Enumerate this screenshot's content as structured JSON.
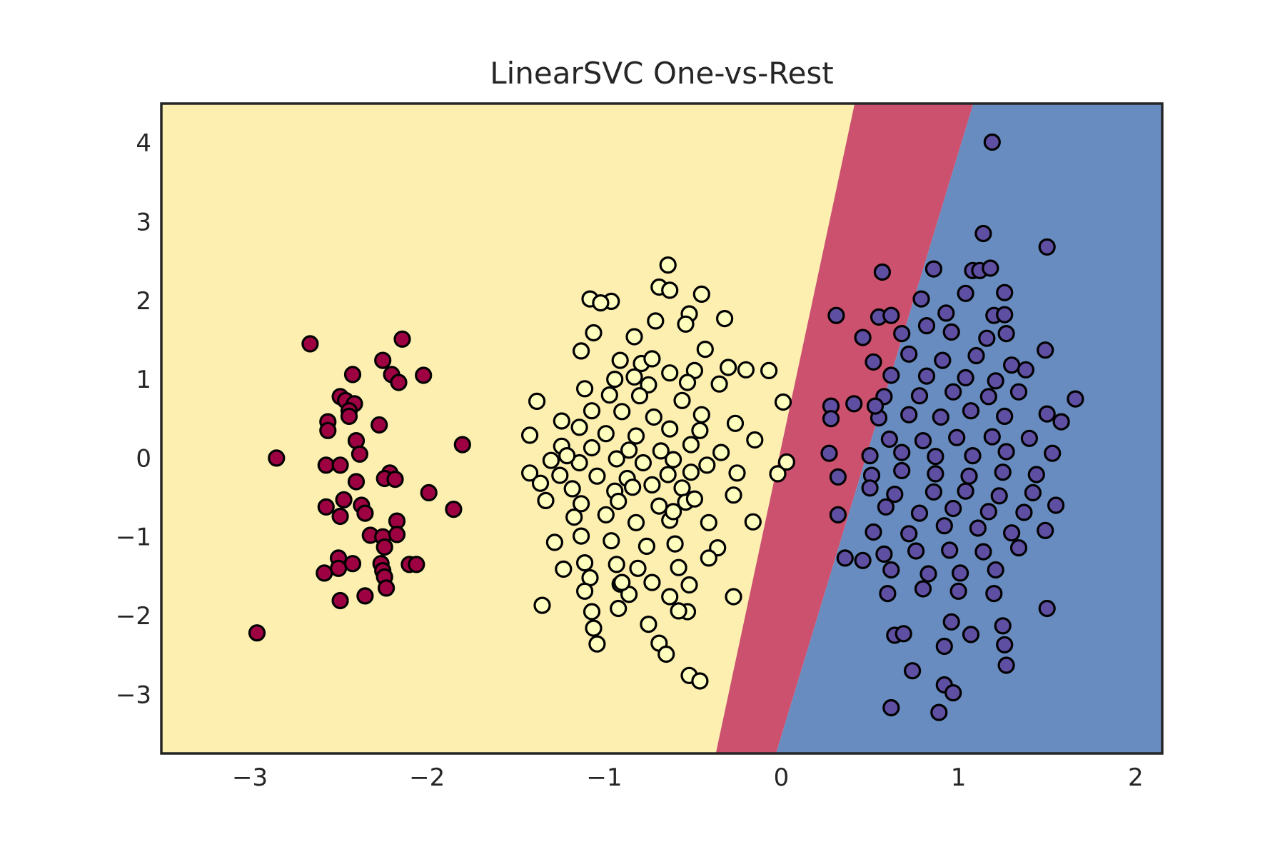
{
  "chart_data": {
    "type": "scatter",
    "title": "LinearSVC One-vs-Rest",
    "xlabel": "",
    "ylabel": "",
    "xlim": [
      -3.5,
      2.15
    ],
    "ylim": [
      -3.75,
      4.5
    ],
    "xticks": [
      -3,
      -2,
      -1,
      0,
      1,
      2
    ],
    "yticks": [
      -3,
      -2,
      -1,
      0,
      1,
      2,
      3,
      4
    ],
    "xtick_labels": [
      "−3",
      "−2",
      "−1",
      "0",
      "1",
      "2"
    ],
    "ytick_labels": [
      "−3",
      "−2",
      "−1",
      "0",
      "1",
      "2",
      "3",
      "4"
    ],
    "grid": false,
    "legend": "none",
    "decision_regions": [
      {
        "class": "left cluster",
        "color": "#fcefb0",
        "boundary": "x < -0.37 + 0.095*(y + 3.75)"
      },
      {
        "class": "narrow band",
        "color": "#cb516e",
        "boundary": "between left and right regions"
      },
      {
        "class": "right cluster",
        "color": "#688cc0",
        "boundary": "x > -0.03 + 0.135*(y + 3.75)"
      }
    ],
    "series": [
      {
        "color": "#9e0142",
        "points": [
          [
            -2.66,
            1.45
          ],
          [
            -2.14,
            1.51
          ],
          [
            -2.25,
            1.24
          ],
          [
            -2.2,
            1.06
          ],
          [
            -2.16,
            0.96
          ],
          [
            -2.02,
            1.05
          ],
          [
            -2.42,
            1.06
          ],
          [
            -2.49,
            0.78
          ],
          [
            -2.46,
            0.73
          ],
          [
            -2.41,
            0.69
          ],
          [
            -2.44,
            0.6
          ],
          [
            -2.56,
            0.46
          ],
          [
            -2.44,
            0.53
          ],
          [
            -2.56,
            0.35
          ],
          [
            -2.4,
            0.22
          ],
          [
            -2.27,
            0.42
          ],
          [
            -2.38,
            0.05
          ],
          [
            -2.85,
            0.0
          ],
          [
            -1.8,
            0.17
          ],
          [
            -2.57,
            -0.09
          ],
          [
            -2.49,
            -0.09
          ],
          [
            -2.4,
            -0.3
          ],
          [
            -2.21,
            -0.19
          ],
          [
            -2.24,
            -0.26
          ],
          [
            -2.18,
            -0.27
          ],
          [
            -1.99,
            -0.44
          ],
          [
            -2.47,
            -0.53
          ],
          [
            -2.57,
            -0.62
          ],
          [
            -2.37,
            -0.6
          ],
          [
            -2.35,
            -0.7
          ],
          [
            -2.49,
            -0.74
          ],
          [
            -1.85,
            -0.65
          ],
          [
            -2.17,
            -0.8
          ],
          [
            -2.32,
            -0.98
          ],
          [
            -2.25,
            -1.0
          ],
          [
            -2.17,
            -0.97
          ],
          [
            -2.24,
            -1.13
          ],
          [
            -2.5,
            -1.27
          ],
          [
            -2.42,
            -1.34
          ],
          [
            -2.5,
            -1.4
          ],
          [
            -2.26,
            -1.34
          ],
          [
            -2.25,
            -1.43
          ],
          [
            -2.24,
            -1.51
          ],
          [
            -2.1,
            -1.35
          ],
          [
            -2.06,
            -1.35
          ],
          [
            -2.58,
            -1.46
          ],
          [
            -2.23,
            -1.65
          ],
          [
            -2.35,
            -1.75
          ],
          [
            -2.49,
            -1.81
          ],
          [
            -2.96,
            -2.22
          ]
        ]
      },
      {
        "color": "#fefebe",
        "points": [
          [
            -0.64,
            2.45
          ],
          [
            -1.08,
            2.02
          ],
          [
            -0.69,
            2.17
          ],
          [
            -0.63,
            2.13
          ],
          [
            -0.45,
            2.08
          ],
          [
            -0.52,
            1.83
          ],
          [
            -0.32,
            1.77
          ],
          [
            -0.96,
            1.99
          ],
          [
            -1.02,
            1.97
          ],
          [
            -1.06,
            1.59
          ],
          [
            -0.71,
            1.74
          ],
          [
            -0.54,
            1.7
          ],
          [
            -0.83,
            1.54
          ],
          [
            -1.13,
            1.36
          ],
          [
            -0.91,
            1.24
          ],
          [
            -0.79,
            1.2
          ],
          [
            -0.73,
            1.26
          ],
          [
            -0.63,
            1.08
          ],
          [
            -0.49,
            1.11
          ],
          [
            -0.3,
            1.15
          ],
          [
            -0.2,
            1.12
          ],
          [
            -0.07,
            1.11
          ],
          [
            -0.94,
            1.0
          ],
          [
            -0.83,
            1.03
          ],
          [
            -0.75,
            0.93
          ],
          [
            -0.53,
            0.96
          ],
          [
            -0.35,
            0.94
          ],
          [
            -1.11,
            0.88
          ],
          [
            -0.97,
            0.8
          ],
          [
            -0.8,
            0.79
          ],
          [
            -0.56,
            0.73
          ],
          [
            -1.38,
            0.72
          ],
          [
            -1.07,
            0.6
          ],
          [
            -0.9,
            0.59
          ],
          [
            -0.72,
            0.52
          ],
          [
            -0.45,
            0.55
          ],
          [
            -1.24,
            0.47
          ],
          [
            -1.14,
            0.39
          ],
          [
            -0.99,
            0.31
          ],
          [
            -0.82,
            0.28
          ],
          [
            -0.63,
            0.37
          ],
          [
            -0.46,
            0.35
          ],
          [
            -0.26,
            0.44
          ],
          [
            -1.42,
            0.29
          ],
          [
            -1.24,
            0.15
          ],
          [
            -1.07,
            0.13
          ],
          [
            -0.86,
            0.1
          ],
          [
            -0.68,
            0.09
          ],
          [
            -0.51,
            0.17
          ],
          [
            -0.34,
            0.07
          ],
          [
            -1.3,
            -0.03
          ],
          [
            -1.14,
            -0.06
          ],
          [
            -0.93,
            -0.01
          ],
          [
            -0.78,
            -0.06
          ],
          [
            -0.61,
            -0.02
          ],
          [
            -0.42,
            -0.09
          ],
          [
            0.01,
            0.71
          ],
          [
            -0.15,
            0.23
          ],
          [
            -1.42,
            -0.19
          ],
          [
            -1.25,
            -0.22
          ],
          [
            -1.04,
            -0.23
          ],
          [
            -0.87,
            -0.26
          ],
          [
            -0.64,
            -0.21
          ],
          [
            -0.51,
            -0.18
          ],
          [
            -0.25,
            -0.19
          ],
          [
            -1.36,
            -0.32
          ],
          [
            -1.18,
            -0.39
          ],
          [
            -0.94,
            -0.42
          ],
          [
            -0.73,
            -0.34
          ],
          [
            -0.56,
            -0.38
          ],
          [
            -1.33,
            -0.54
          ],
          [
            -1.13,
            -0.58
          ],
          [
            -0.92,
            -0.55
          ],
          [
            -0.69,
            -0.61
          ],
          [
            -0.54,
            -0.56
          ],
          [
            -0.27,
            -0.47
          ],
          [
            -1.17,
            -0.75
          ],
          [
            -0.99,
            -0.72
          ],
          [
            -0.82,
            -0.82
          ],
          [
            -0.63,
            -0.79
          ],
          [
            -0.41,
            -0.82
          ],
          [
            -0.16,
            -0.81
          ],
          [
            -1.28,
            -1.07
          ],
          [
            -1.13,
            -0.99
          ],
          [
            -0.96,
            -1.05
          ],
          [
            -0.76,
            -1.12
          ],
          [
            -0.6,
            -1.09
          ],
          [
            -0.36,
            -1.14
          ],
          [
            -1.11,
            -1.33
          ],
          [
            -0.93,
            -1.35
          ],
          [
            -0.81,
            -1.4
          ],
          [
            -0.58,
            -1.39
          ],
          [
            -0.41,
            -1.27
          ],
          [
            -1.23,
            -1.41
          ],
          [
            -1.08,
            -1.52
          ],
          [
            -0.91,
            -1.6
          ],
          [
            -0.73,
            -1.58
          ],
          [
            -0.52,
            -1.61
          ],
          [
            -1.11,
            -1.69
          ],
          [
            -0.86,
            -1.73
          ],
          [
            -0.63,
            -1.76
          ],
          [
            -1.35,
            -1.87
          ],
          [
            -1.07,
            -1.95
          ],
          [
            -0.92,
            -1.91
          ],
          [
            -0.53,
            -1.95
          ],
          [
            -0.27,
            -1.76
          ],
          [
            -1.06,
            -2.16
          ],
          [
            -0.75,
            -2.11
          ],
          [
            -1.04,
            -2.36
          ],
          [
            -0.69,
            -2.35
          ],
          [
            -0.65,
            -2.49
          ],
          [
            -0.52,
            -2.76
          ],
          [
            -0.46,
            -2.83
          ],
          [
            -0.02,
            -0.2
          ],
          [
            0.03,
            -0.05
          ],
          [
            -0.58,
            -1.94
          ],
          [
            -0.9,
            -1.58
          ],
          [
            -0.49,
            -0.52
          ],
          [
            -0.61,
            -0.68
          ],
          [
            -0.84,
            -0.37
          ],
          [
            -1.21,
            0.03
          ],
          [
            -0.43,
            1.38
          ]
        ]
      },
      {
        "color": "#5e4fa2",
        "points": [
          [
            1.19,
            4.01
          ],
          [
            1.14,
            2.85
          ],
          [
            1.5,
            2.68
          ],
          [
            0.57,
            2.36
          ],
          [
            0.86,
            2.4
          ],
          [
            1.08,
            2.38
          ],
          [
            1.12,
            2.38
          ],
          [
            1.18,
            2.41
          ],
          [
            1.04,
            2.09
          ],
          [
            1.26,
            2.1
          ],
          [
            0.79,
            2.02
          ],
          [
            0.93,
            1.84
          ],
          [
            1.2,
            1.81
          ],
          [
            0.31,
            1.81
          ],
          [
            0.55,
            1.79
          ],
          [
            0.62,
            1.81
          ],
          [
            0.82,
            1.68
          ],
          [
            0.46,
            1.53
          ],
          [
            0.68,
            1.58
          ],
          [
            0.96,
            1.6
          ],
          [
            1.16,
            1.52
          ],
          [
            1.27,
            1.58
          ],
          [
            0.52,
            1.22
          ],
          [
            0.72,
            1.32
          ],
          [
            0.91,
            1.24
          ],
          [
            1.1,
            1.3
          ],
          [
            1.3,
            1.18
          ],
          [
            1.49,
            1.37
          ],
          [
            0.62,
            1.05
          ],
          [
            0.82,
            1.04
          ],
          [
            1.04,
            1.02
          ],
          [
            1.21,
            0.98
          ],
          [
            1.38,
            1.12
          ],
          [
            0.28,
            0.66
          ],
          [
            0.41,
            0.69
          ],
          [
            0.58,
            0.78
          ],
          [
            0.78,
            0.79
          ],
          [
            0.97,
            0.84
          ],
          [
            1.17,
            0.78
          ],
          [
            1.34,
            0.84
          ],
          [
            1.66,
            0.75
          ],
          [
            0.55,
            0.51
          ],
          [
            0.72,
            0.55
          ],
          [
            0.9,
            0.52
          ],
          [
            1.07,
            0.6
          ],
          [
            1.26,
            0.53
          ],
          [
            1.5,
            0.56
          ],
          [
            1.58,
            0.46
          ],
          [
            0.61,
            0.24
          ],
          [
            0.8,
            0.22
          ],
          [
            0.99,
            0.26
          ],
          [
            1.19,
            0.27
          ],
          [
            1.4,
            0.25
          ],
          [
            0.27,
            0.06
          ],
          [
            0.5,
            0.03
          ],
          [
            0.68,
            0.07
          ],
          [
            0.87,
            0.02
          ],
          [
            1.08,
            0.03
          ],
          [
            1.27,
            0.08
          ],
          [
            1.53,
            0.06
          ],
          [
            0.51,
            -0.22
          ],
          [
            0.68,
            -0.16
          ],
          [
            0.87,
            -0.2
          ],
          [
            1.06,
            -0.23
          ],
          [
            1.25,
            -0.18
          ],
          [
            1.44,
            -0.21
          ],
          [
            0.32,
            -0.24
          ],
          [
            0.5,
            -0.38
          ],
          [
            0.64,
            -0.46
          ],
          [
            0.86,
            -0.43
          ],
          [
            1.04,
            -0.42
          ],
          [
            1.23,
            -0.48
          ],
          [
            1.42,
            -0.44
          ],
          [
            0.59,
            -0.62
          ],
          [
            0.78,
            -0.7
          ],
          [
            0.97,
            -0.64
          ],
          [
            1.17,
            -0.68
          ],
          [
            1.37,
            -0.69
          ],
          [
            1.55,
            -0.6
          ],
          [
            0.32,
            -0.72
          ],
          [
            0.52,
            -0.94
          ],
          [
            0.72,
            -0.96
          ],
          [
            0.92,
            -0.86
          ],
          [
            1.11,
            -0.89
          ],
          [
            1.3,
            -0.95
          ],
          [
            1.49,
            -0.92
          ],
          [
            0.36,
            -1.27
          ],
          [
            0.58,
            -1.22
          ],
          [
            0.76,
            -1.18
          ],
          [
            0.95,
            -1.17
          ],
          [
            1.14,
            -1.19
          ],
          [
            1.34,
            -1.14
          ],
          [
            0.62,
            -1.42
          ],
          [
            0.83,
            -1.47
          ],
          [
            1.01,
            -1.46
          ],
          [
            1.21,
            -1.42
          ],
          [
            0.6,
            -1.72
          ],
          [
            0.8,
            -1.66
          ],
          [
            1.0,
            -1.69
          ],
          [
            1.2,
            -1.72
          ],
          [
            1.5,
            -1.91
          ],
          [
            0.96,
            -2.08
          ],
          [
            1.25,
            -2.13
          ],
          [
            0.64,
            -2.25
          ],
          [
            0.69,
            -2.23
          ],
          [
            1.07,
            -2.24
          ],
          [
            0.92,
            -2.39
          ],
          [
            1.26,
            -2.37
          ],
          [
            0.74,
            -2.7
          ],
          [
            1.27,
            -2.63
          ],
          [
            0.92,
            -2.88
          ],
          [
            0.97,
            -2.98
          ],
          [
            0.62,
            -3.17
          ],
          [
            0.89,
            -3.23
          ],
          [
            0.28,
            0.5
          ],
          [
            0.46,
            -1.3
          ],
          [
            1.26,
            1.82
          ],
          [
            0.53,
            0.66
          ]
        ]
      }
    ]
  }
}
